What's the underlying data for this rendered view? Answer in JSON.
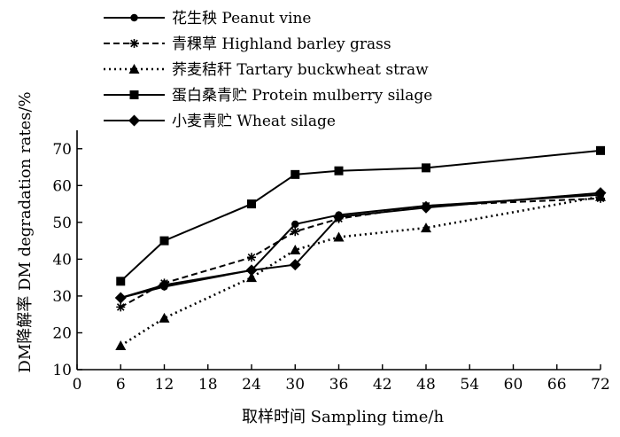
{
  "chart_data": {
    "type": "line",
    "title": "",
    "xlabel": "取样时间  Sampling time/h",
    "ylabel": "DM降解率  DM degradation rates/%",
    "xlim": [
      0,
      72
    ],
    "ylim": [
      10,
      75
    ],
    "xticks": [
      0,
      6,
      12,
      18,
      24,
      30,
      36,
      42,
      48,
      54,
      60,
      66,
      72
    ],
    "yticks": [
      10,
      20,
      30,
      40,
      50,
      60,
      70
    ],
    "grid": false,
    "legend_position": "top-left",
    "x": [
      6,
      12,
      24,
      30,
      36,
      48,
      72
    ],
    "series": [
      {
        "name": "花生秧 Peanut vine",
        "values": [
          29.5,
          32.5,
          37.0,
          49.5,
          52.0,
          54.5,
          57.5
        ],
        "line_style": "solid",
        "marker": "circle"
      },
      {
        "name": "青稞草 Highland barley grass",
        "values": [
          27.0,
          33.5,
          40.5,
          47.5,
          51.0,
          54.5,
          56.5
        ],
        "line_style": "dashed",
        "marker": "asterisk"
      },
      {
        "name": "荞麦秸秆 Tartary buckwheat straw",
        "values": [
          16.5,
          24.0,
          35.0,
          42.5,
          46.0,
          48.5,
          57.0
        ],
        "line_style": "dotted",
        "marker": "triangle"
      },
      {
        "name": "蛋白桑青贮 Protein mulberry silage",
        "values": [
          34.0,
          45.0,
          55.0,
          63.0,
          64.0,
          64.8,
          69.5
        ],
        "line_style": "solid",
        "marker": "square"
      },
      {
        "name": "小麦青贮  Wheat silage",
        "values": [
          29.5,
          33.0,
          37.0,
          38.5,
          51.5,
          54.0,
          58.0
        ],
        "line_style": "solid",
        "marker": "diamond"
      }
    ]
  }
}
